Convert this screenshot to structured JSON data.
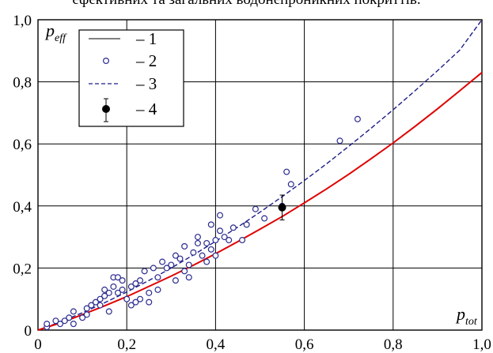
{
  "caption_fragment": "ефективних та загальних водонепроникних покриттів.",
  "chart_data": {
    "type": "scatter",
    "xlabel": {
      "main": "p",
      "sub": "tot"
    },
    "ylabel": {
      "main": "p",
      "sub": "eff"
    },
    "xlim": [
      0,
      1
    ],
    "ylim": [
      0,
      1
    ],
    "xticks": [
      "0",
      "0,2",
      "0,4",
      "0,6",
      "0,8",
      "1,0"
    ],
    "yticks": [
      "0",
      "0,2",
      "0,4",
      "0,6",
      "0,8",
      "1,0"
    ],
    "grid": true,
    "legend_position": "top-left",
    "legend": [
      {
        "marker": "solid-line",
        "label": "– 1"
      },
      {
        "marker": "open-circle",
        "label": "– 2"
      },
      {
        "marker": "dashed-line",
        "label": "– 3"
      },
      {
        "marker": "filled-circle-errorbar",
        "label": "– 4"
      }
    ],
    "colors": {
      "curve1": "#e00000",
      "points2": "#2b2b8f",
      "curve3": "#1c1c8a",
      "point4": "#000000",
      "grid": "#000000"
    },
    "series": [
      {
        "name": "1",
        "type": "line",
        "x": [
          0.0,
          0.05,
          0.1,
          0.15,
          0.2,
          0.25,
          0.3,
          0.35,
          0.4,
          0.45,
          0.5,
          0.55,
          0.6,
          0.65,
          0.7,
          0.75,
          0.8,
          0.85,
          0.9,
          0.95,
          1.0
        ],
        "y": [
          0.0,
          0.023,
          0.05,
          0.078,
          0.108,
          0.141,
          0.174,
          0.209,
          0.246,
          0.285,
          0.325,
          0.366,
          0.41,
          0.455,
          0.502,
          0.552,
          0.603,
          0.657,
          0.713,
          0.771,
          0.83
        ]
      },
      {
        "name": "2",
        "type": "scatter",
        "x": [
          0.02,
          0.02,
          0.04,
          0.05,
          0.06,
          0.07,
          0.08,
          0.08,
          0.1,
          0.11,
          0.11,
          0.12,
          0.13,
          0.14,
          0.14,
          0.15,
          0.15,
          0.16,
          0.16,
          0.17,
          0.17,
          0.18,
          0.18,
          0.19,
          0.19,
          0.2,
          0.21,
          0.21,
          0.22,
          0.22,
          0.23,
          0.23,
          0.24,
          0.25,
          0.25,
          0.26,
          0.27,
          0.27,
          0.28,
          0.29,
          0.3,
          0.31,
          0.31,
          0.32,
          0.33,
          0.33,
          0.34,
          0.34,
          0.35,
          0.36,
          0.36,
          0.37,
          0.38,
          0.38,
          0.39,
          0.39,
          0.4,
          0.4,
          0.41,
          0.41,
          0.42,
          0.43,
          0.44,
          0.46,
          0.47,
          0.49,
          0.51,
          0.55,
          0.56,
          0.57,
          0.68,
          0.72
        ],
        "y": [
          0.01,
          0.02,
          0.03,
          0.02,
          0.03,
          0.04,
          0.02,
          0.06,
          0.04,
          0.07,
          0.05,
          0.08,
          0.09,
          0.08,
          0.1,
          0.11,
          0.13,
          0.12,
          0.06,
          0.14,
          0.17,
          0.12,
          0.17,
          0.16,
          0.13,
          0.1,
          0.08,
          0.14,
          0.15,
          0.09,
          0.1,
          0.16,
          0.19,
          0.09,
          0.12,
          0.2,
          0.17,
          0.13,
          0.22,
          0.2,
          0.21,
          0.16,
          0.24,
          0.23,
          0.19,
          0.27,
          0.21,
          0.17,
          0.25,
          0.28,
          0.3,
          0.24,
          0.22,
          0.28,
          0.26,
          0.34,
          0.29,
          0.24,
          0.32,
          0.37,
          0.3,
          0.29,
          0.33,
          0.29,
          0.34,
          0.39,
          0.36,
          0.4,
          0.51,
          0.47,
          0.61,
          0.68
        ]
      },
      {
        "name": "3",
        "type": "line",
        "x": [
          0.0,
          0.05,
          0.1,
          0.15,
          0.2,
          0.25,
          0.3,
          0.35,
          0.4,
          0.45,
          0.5,
          0.55,
          0.6,
          0.65,
          0.7,
          0.75,
          0.8,
          0.85,
          0.9,
          0.95,
          1.0
        ],
        "y": [
          0.0,
          0.026,
          0.056,
          0.088,
          0.123,
          0.16,
          0.2,
          0.242,
          0.286,
          0.332,
          0.38,
          0.43,
          0.482,
          0.536,
          0.592,
          0.65,
          0.71,
          0.772,
          0.836,
          0.902,
          1.0
        ]
      },
      {
        "name": "4",
        "type": "point-errorbar",
        "x": [
          0.55
        ],
        "y": [
          0.395
        ],
        "yerr": [
          0.04
        ]
      }
    ]
  }
}
